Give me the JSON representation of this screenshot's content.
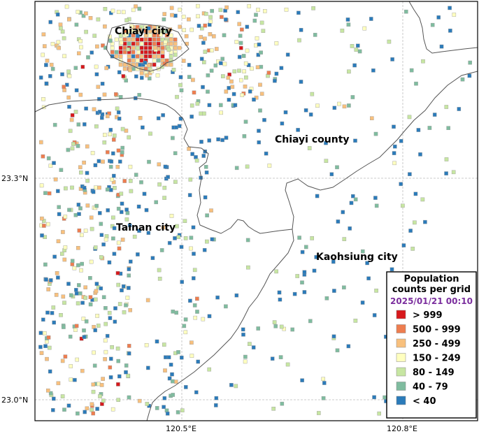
{
  "map": {
    "place_labels": [
      "Chiayi city",
      "Chiayi county",
      "Tainan city",
      "Kaohsiung city"
    ],
    "lon_ticks": [
      {
        "value": 120.5,
        "label": "120.5°E"
      },
      {
        "value": 120.8,
        "label": "120.8°E"
      }
    ],
    "lat_ticks": [
      {
        "value": 23.3,
        "label": "23.3°N"
      },
      {
        "value": 23.0,
        "label": "23.0°N"
      }
    ],
    "gridlines": true
  },
  "legend": {
    "title_line1": "Population",
    "title_line2": "counts per grid",
    "date": "2025/01/21 00:10",
    "date_color": "#7b2f9e",
    "items": [
      {
        "label": "> 999",
        "color": "#d7191c"
      },
      {
        "label": "500 - 999",
        "color": "#ee7d4f"
      },
      {
        "label": "250 - 499",
        "color": "#f8c07d"
      },
      {
        "label": "150 - 249",
        "color": "#ffffbf"
      },
      {
        "label": "80 - 149",
        "color": "#c7e6a2"
      },
      {
        "label": "40 - 79",
        "color": "#7fbc9f"
      },
      {
        "label": "< 40",
        "color": "#2b7bba"
      }
    ]
  }
}
